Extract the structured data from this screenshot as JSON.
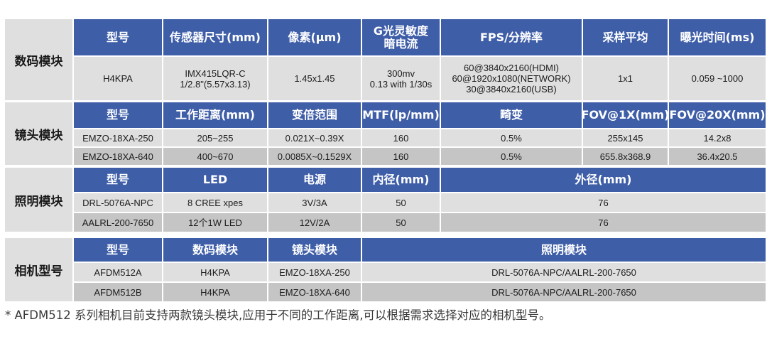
{
  "digital_module": {
    "label": "数码模块",
    "headers": [
      "型号",
      "传感器尺寸(mm)",
      "像素(μm)",
      "G光灵敏度\n暗电流",
      "FPS/分辨率",
      "采样平均",
      "曝光时间(ms)"
    ],
    "rows": [
      [
        "H4KPA",
        "IMX415LQR-C\n1/2.8\"(5.57x3.13)",
        "1.45x1.45",
        "300mv\n0.13 with 1/30s",
        "60@3840x2160(HDMI)\n60@1920x1080(NETWORK)\n30@3840x2160(USB)",
        "1x1",
        "0.059 ~1000"
      ]
    ]
  },
  "lens_module": {
    "label": "镜头模块",
    "headers": [
      "型号",
      "工作距离(mm)",
      "变倍范围",
      "MTF(lp/mm)",
      "畸变",
      "FOV@1X(mm)",
      "FOV@20X(mm)"
    ],
    "rows": [
      [
        "EMZO-18XA-250",
        "205~255",
        "0.021X~0.39X",
        "160",
        "0.5%",
        "255x145",
        "14.2x8"
      ],
      [
        "EMZO-18XA-640",
        "400~670",
        "0.0085X~0.1529X",
        "160",
        "0.5%",
        "655.8x368.9",
        "36.4x20.5"
      ]
    ]
  },
  "lighting_module": {
    "label": "照明模块",
    "headers": [
      "型号",
      "LED",
      "电源",
      "内径(mm)",
      "外径(mm)"
    ],
    "rows": [
      [
        "DRL-5076A-NPC",
        "8 CREE xpes",
        "3V/3A",
        "50",
        "76"
      ],
      [
        "AALRL-200-7650",
        "12个1W LED",
        "12V/2A",
        "50",
        "76"
      ]
    ]
  },
  "camera_model": {
    "label": "相机型号",
    "headers": [
      "型号",
      "数码模块",
      "镜头模块",
      "照明模块"
    ],
    "rows": [
      [
        "AFDM512A",
        "H4KPA",
        "EMZO-18XA-250",
        "DRL-5076A-NPC/AALRL-200-7650"
      ],
      [
        "AFDM512B",
        "H4KPA",
        "EMZO-18XA-640",
        "DRL-5076A-NPC/AALRL-200-7650"
      ]
    ]
  },
  "footnote": "* AFDM512 系列相机目前支持两款镜头模块,应用于不同的工作距离,可以根据需求选择对应的相机型号。",
  "colors": {
    "header_bg": "#3f5ea8",
    "row_light": "#dfdfdf",
    "row_dark": "#c5c5c5"
  }
}
